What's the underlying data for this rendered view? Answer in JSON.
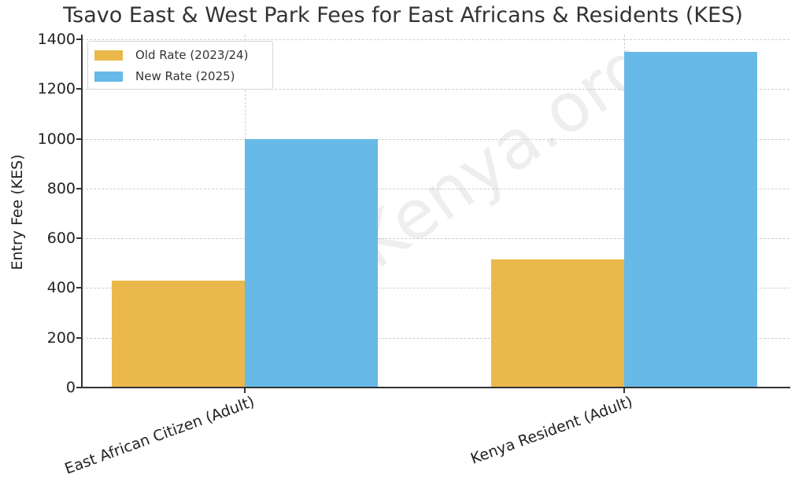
{
  "chart_data": {
    "type": "bar",
    "title": "Tsavo East & West Park Fees for East Africans & Residents (KES)",
    "xlabel": "",
    "ylabel": "Entry Fee (KES)",
    "categories": [
      "East African Citizen (Adult)",
      "Kenya Resident (Adult)"
    ],
    "series": [
      {
        "name": "Old Rate (2023/24)",
        "color": "#EBB84B",
        "values": [
          430,
          515
        ]
      },
      {
        "name": "New Rate (2025)",
        "color": "#67B9E8",
        "values": [
          1000,
          1350
        ]
      }
    ],
    "ylim": [
      0,
      1400
    ],
    "yticks": [
      0,
      200,
      400,
      600,
      800,
      1000,
      1200,
      1400
    ],
    "grid": true,
    "legend_position": "upper left",
    "watermark": "TsavoKenya.org"
  }
}
